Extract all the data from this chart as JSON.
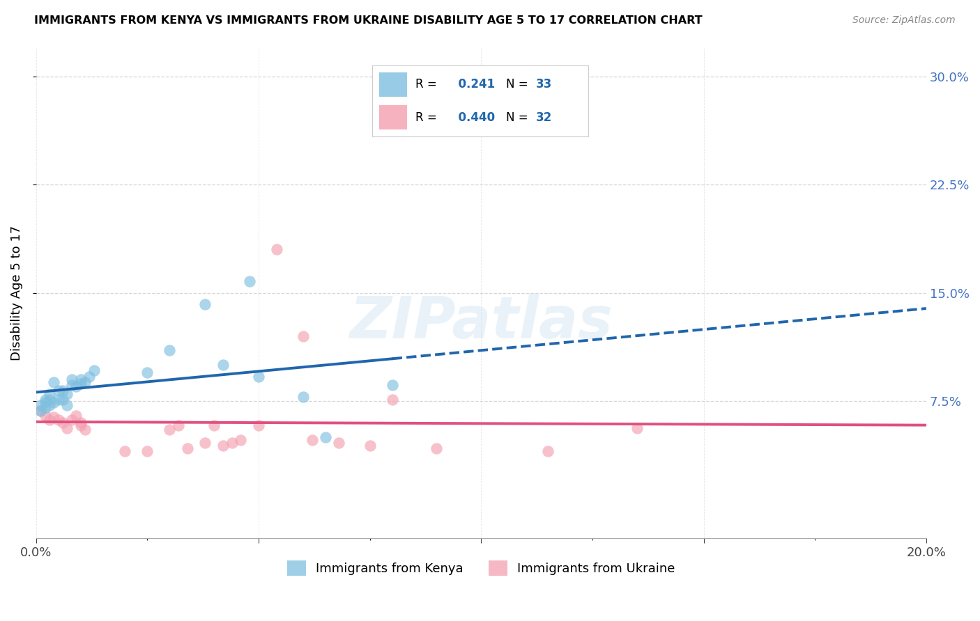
{
  "title": "IMMIGRANTS FROM KENYA VS IMMIGRANTS FROM UKRAINE DISABILITY AGE 5 TO 17 CORRELATION CHART",
  "source": "Source: ZipAtlas.com",
  "ylabel": "Disability Age 5 to 17",
  "xlim": [
    0.0,
    0.2
  ],
  "ylim": [
    -0.02,
    0.32
  ],
  "yticks_right": [
    0.075,
    0.15,
    0.225,
    0.3
  ],
  "ytick_right_labels": [
    "7.5%",
    "15.0%",
    "22.5%",
    "30.0%"
  ],
  "kenya_color": "#7fbfdf",
  "ukraine_color": "#f4a0b0",
  "kenya_line_color": "#2166ac",
  "ukraine_line_color": "#e05080",
  "legend_r_color": "#2166ac",
  "kenya_R": 0.241,
  "kenya_N": 33,
  "ukraine_R": 0.44,
  "ukraine_N": 32,
  "kenya_x": [
    0.001,
    0.001,
    0.002,
    0.002,
    0.002,
    0.003,
    0.003,
    0.003,
    0.004,
    0.004,
    0.005,
    0.005,
    0.006,
    0.006,
    0.007,
    0.007,
    0.008,
    0.008,
    0.009,
    0.01,
    0.01,
    0.011,
    0.012,
    0.013,
    0.025,
    0.03,
    0.038,
    0.042,
    0.048,
    0.05,
    0.06,
    0.065,
    0.08
  ],
  "kenya_y": [
    0.068,
    0.072,
    0.07,
    0.074,
    0.076,
    0.072,
    0.076,
    0.08,
    0.074,
    0.088,
    0.076,
    0.082,
    0.076,
    0.082,
    0.072,
    0.08,
    0.086,
    0.09,
    0.085,
    0.087,
    0.09,
    0.088,
    0.092,
    0.096,
    0.095,
    0.11,
    0.142,
    0.1,
    0.158,
    0.092,
    0.078,
    0.05,
    0.086
  ],
  "ukraine_x": [
    0.001,
    0.002,
    0.003,
    0.004,
    0.005,
    0.006,
    0.007,
    0.008,
    0.009,
    0.01,
    0.01,
    0.011,
    0.02,
    0.025,
    0.03,
    0.032,
    0.034,
    0.038,
    0.04,
    0.042,
    0.044,
    0.046,
    0.05,
    0.054,
    0.06,
    0.062,
    0.068,
    0.075,
    0.08,
    0.09,
    0.115,
    0.135
  ],
  "ukraine_y": [
    0.068,
    0.065,
    0.062,
    0.064,
    0.062,
    0.06,
    0.056,
    0.062,
    0.065,
    0.058,
    0.06,
    0.055,
    0.04,
    0.04,
    0.055,
    0.058,
    0.042,
    0.046,
    0.058,
    0.044,
    0.046,
    0.048,
    0.058,
    0.18,
    0.12,
    0.048,
    0.046,
    0.044,
    0.076,
    0.042,
    0.04,
    0.056
  ],
  "watermark": "ZIPatlas",
  "background_color": "#ffffff",
  "grid_color": "#cccccc"
}
